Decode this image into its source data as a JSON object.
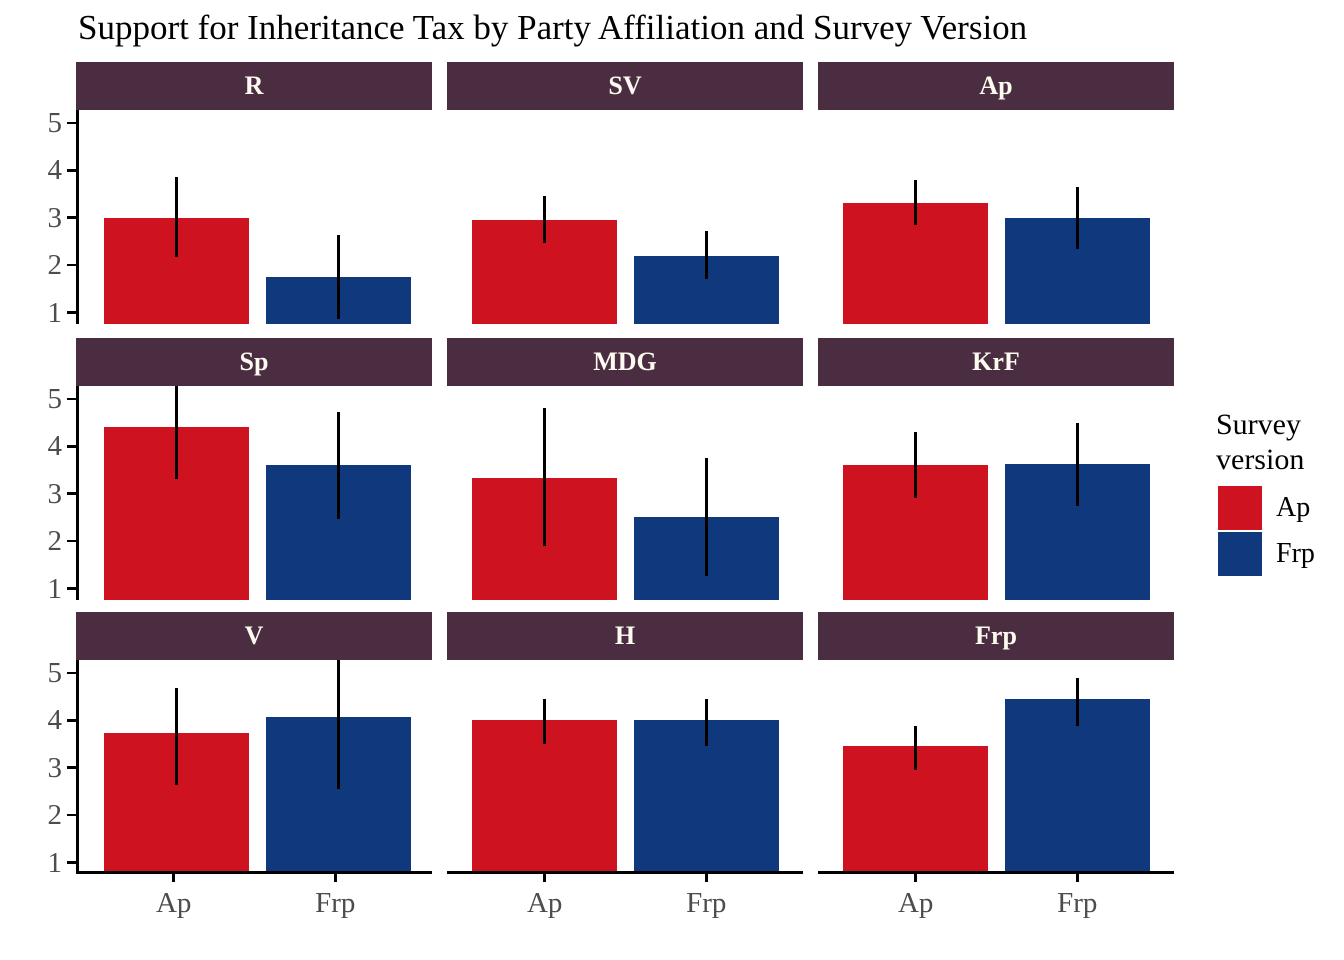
{
  "chart_data": {
    "type": "bar",
    "title": "Support for Inheritance Tax by Party Affiliation and Survey Version",
    "x_categories": [
      "Ap",
      "Frp"
    ],
    "y_ticks": [
      1,
      2,
      3,
      4,
      5
    ],
    "ylim_visible": [
      0.76,
      5.27
    ],
    "grid": "off",
    "facets": [
      {
        "label": "R",
        "series": [
          {
            "name": "Ap",
            "value": 3.0,
            "ci_low": 2.17,
            "ci_high": 3.85
          },
          {
            "name": "Frp",
            "value": 1.75,
            "ci_low": 0.87,
            "ci_high": 2.63
          }
        ]
      },
      {
        "label": "SV",
        "series": [
          {
            "name": "Ap",
            "value": 2.95,
            "ci_low": 2.47,
            "ci_high": 3.46
          },
          {
            "name": "Frp",
            "value": 2.2,
            "ci_low": 1.7,
            "ci_high": 2.73
          }
        ]
      },
      {
        "label": "Ap",
        "series": [
          {
            "name": "Ap",
            "value": 3.3,
            "ci_low": 2.85,
            "ci_high": 3.8
          },
          {
            "name": "Frp",
            "value": 3.0,
            "ci_low": 2.35,
            "ci_high": 3.65
          }
        ]
      },
      {
        "label": "Sp",
        "series": [
          {
            "name": "Ap",
            "value": 4.4,
            "ci_low": 3.3,
            "ci_high": 5.4
          },
          {
            "name": "Frp",
            "value": 3.6,
            "ci_low": 2.47,
            "ci_high": 4.73
          }
        ]
      },
      {
        "label": "MDG",
        "series": [
          {
            "name": "Ap",
            "value": 3.33,
            "ci_low": 1.9,
            "ci_high": 4.8
          },
          {
            "name": "Frp",
            "value": 2.5,
            "ci_low": 1.27,
            "ci_high": 3.75
          }
        ]
      },
      {
        "label": "KrF",
        "series": [
          {
            "name": "Ap",
            "value": 3.6,
            "ci_low": 2.9,
            "ci_high": 4.3
          },
          {
            "name": "Frp",
            "value": 3.63,
            "ci_low": 2.75,
            "ci_high": 4.5
          }
        ]
      },
      {
        "label": "V",
        "series": [
          {
            "name": "Ap",
            "value": 3.67,
            "ci_low": 2.64,
            "ci_high": 4.68
          },
          {
            "name": "Frp",
            "value": 4.0,
            "ci_low": 2.56,
            "ci_high": 5.4
          }
        ]
      },
      {
        "label": "H",
        "series": [
          {
            "name": "Ap",
            "value": 3.95,
            "ci_low": 3.5,
            "ci_high": 4.45
          },
          {
            "name": "Frp",
            "value": 3.95,
            "ci_low": 3.45,
            "ci_high": 4.45
          }
        ]
      },
      {
        "label": "Frp",
        "series": [
          {
            "name": "Ap",
            "value": 3.4,
            "ci_low": 2.95,
            "ci_high": 3.87
          },
          {
            "name": "Frp",
            "value": 4.38,
            "ci_low": 3.88,
            "ci_high": 4.9
          }
        ]
      }
    ],
    "legend": {
      "title": "Survey version",
      "position": "right",
      "entries": [
        {
          "label": "Ap",
          "color": "#cf1220"
        },
        {
          "label": "Frp",
          "color": "#10397d"
        }
      ]
    },
    "colors": {
      "bar_ap": "#cf1220",
      "bar_frp": "#10397d",
      "strip_bg": "#4a2d40",
      "strip_text": "#fdfaef",
      "axis_text": "#4d4d4d",
      "axis_line": "#000000",
      "error_bar": "#000000"
    }
  }
}
